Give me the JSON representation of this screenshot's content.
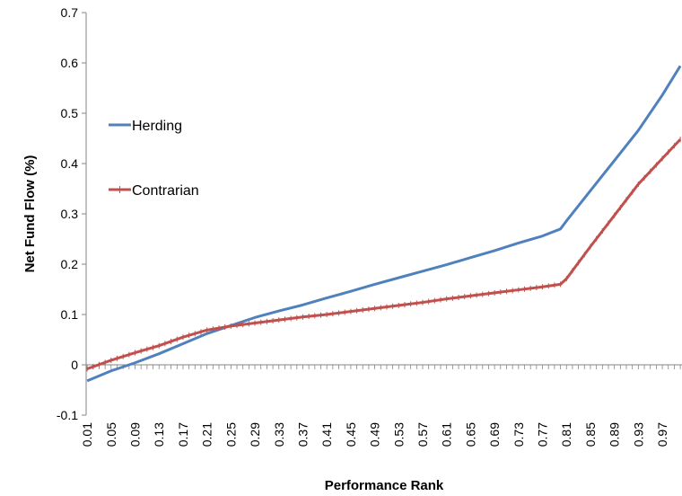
{
  "chart_data": {
    "type": "line",
    "title": "",
    "xlabel": "Performance Rank",
    "ylabel": "Net Fund Flow (%)",
    "ylim": [
      -0.1,
      0.7
    ],
    "yticks": [
      "-0.1",
      "0",
      "0.1",
      "0.2",
      "0.3",
      "0.4",
      "0.5",
      "0.6",
      "0.7"
    ],
    "xticks": [
      "0.01",
      "0.05",
      "0.09",
      "0.13",
      "0.17",
      "0.21",
      "0.25",
      "0.29",
      "0.33",
      "0.37",
      "0.41",
      "0.45",
      "0.49",
      "0.53",
      "0.57",
      "0.61",
      "0.65",
      "0.69",
      "0.73",
      "0.77",
      "0.81",
      "0.85",
      "0.89",
      "0.93",
      "0.97"
    ],
    "x_range": [
      0.01,
      1.0
    ],
    "x_step": 0.01,
    "grid": false,
    "legend_position": "left",
    "series": [
      {
        "name": "Herding",
        "color": "#4F81BD",
        "marker": "none",
        "x": [
          0.01,
          0.05,
          0.09,
          0.13,
          0.17,
          0.21,
          0.25,
          0.29,
          0.33,
          0.37,
          0.41,
          0.45,
          0.49,
          0.53,
          0.57,
          0.61,
          0.65,
          0.69,
          0.73,
          0.77,
          0.8,
          0.81,
          0.85,
          0.89,
          0.93,
          0.97,
          1.0
        ],
        "values": [
          -0.032,
          -0.012,
          0.004,
          0.022,
          0.042,
          0.062,
          0.078,
          0.094,
          0.107,
          0.119,
          0.133,
          0.146,
          0.16,
          0.173,
          0.186,
          0.199,
          0.213,
          0.227,
          0.242,
          0.256,
          0.27,
          0.286,
          0.346,
          0.406,
          0.466,
          0.536,
          0.594
        ]
      },
      {
        "name": "Contrarian",
        "color": "#C0504D",
        "marker": "plus",
        "x": [
          0.01,
          0.05,
          0.09,
          0.13,
          0.17,
          0.21,
          0.25,
          0.29,
          0.33,
          0.37,
          0.41,
          0.45,
          0.49,
          0.53,
          0.57,
          0.61,
          0.65,
          0.69,
          0.73,
          0.77,
          0.8,
          0.81,
          0.85,
          0.89,
          0.93,
          0.97,
          1.0
        ],
        "values": [
          -0.008,
          0.009,
          0.024,
          0.038,
          0.055,
          0.069,
          0.077,
          0.083,
          0.089,
          0.095,
          0.1,
          0.106,
          0.112,
          0.118,
          0.124,
          0.131,
          0.137,
          0.143,
          0.149,
          0.155,
          0.16,
          0.171,
          0.235,
          0.297,
          0.359,
          0.41,
          0.448
        ]
      }
    ]
  }
}
